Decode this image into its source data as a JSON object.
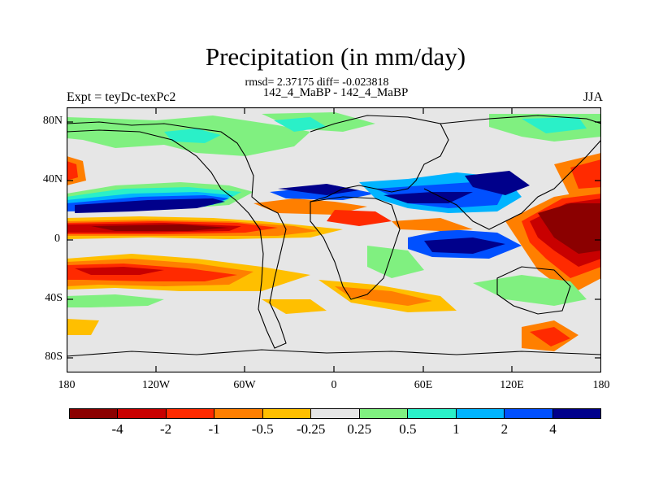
{
  "title": "Precipitation (in mm/day)",
  "stats": "rmsd= 2.37175 diff= -0.023818",
  "subtitle": "142_4_MaBP - 142_4_MaBP",
  "left_label": "Expt = teyDc-texPc2",
  "right_label": "JJA",
  "y_ticks": [
    "80N",
    "40N",
    "0",
    "40S",
    "80S"
  ],
  "x_ticks": [
    "180",
    "120W",
    "60W",
    "0",
    "60E",
    "120E",
    "180"
  ],
  "colorbar": {
    "colors": [
      "#8b0000",
      "#c80000",
      "#ff2a00",
      "#ff7f00",
      "#ffbf00",
      "#e6e6e6",
      "#80f080",
      "#2af0c8",
      "#00b4ff",
      "#0050ff",
      "#00008b"
    ],
    "labels": [
      "-4",
      "-2",
      "-1",
      "-0.5",
      "-0.25",
      "0.25",
      "0.5",
      "1",
      "2",
      "4"
    ]
  },
  "chart_data": {
    "type": "heatmap",
    "title": "Precipitation (in mm/day)",
    "variable": "Precipitation difference",
    "units": "mm/day",
    "season": "JJA",
    "rmsd": 2.37175,
    "diff": -0.023818,
    "x_range": [
      -180,
      180
    ],
    "y_range": [
      -90,
      90
    ],
    "contour_levels": [
      -4,
      -2,
      -1,
      -0.5,
      -0.25,
      0.25,
      0.5,
      1,
      2,
      4
    ]
  }
}
